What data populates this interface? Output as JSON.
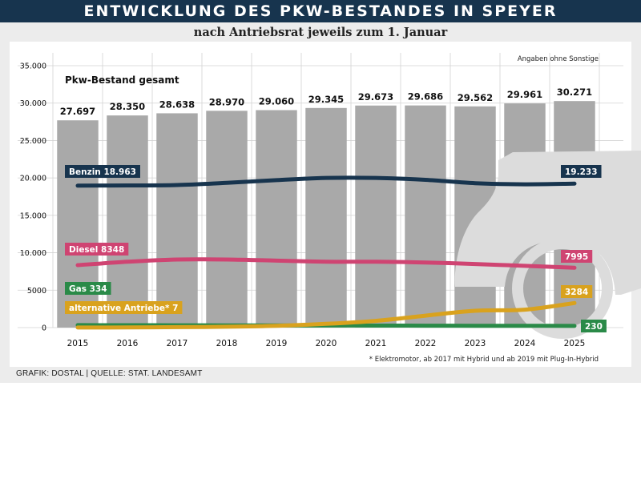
{
  "header": {
    "title": "ENTWICKLUNG DES PKW-BESTANDES IN SPEYER",
    "subtitle": "nach Antriebsrat jeweils zum 1. Januar"
  },
  "footer": {
    "credit": "GRAFIK: DOSTAL | QUELLE: STAT. LANDESAMT"
  },
  "chart_data": {
    "type": "bar",
    "title": "ENTWICKLUNG DES PKW-BESTANDES IN SPEYER",
    "subtitle": "nach Antriebsrat jeweils zum 1. Januar",
    "categories": [
      "2015",
      "2016",
      "2017",
      "2018",
      "2019",
      "2020",
      "2021",
      "2022",
      "2023",
      "2024",
      "2025"
    ],
    "ylim": [
      0,
      35000
    ],
    "yticks": [
      0,
      5000,
      10000,
      15000,
      20000,
      25000,
      30000,
      35000
    ],
    "ytick_labels": [
      "0",
      "5000",
      "10.000",
      "15.000",
      "20.000",
      "25.000",
      "30.000",
      "35.000"
    ],
    "grid": true,
    "note_top": "Angaben ohne Sonstige",
    "footnote": "* Elektromotor, ab 2017 mit Hybrid und ab 2019 mit Plug-In-Hybrid",
    "bars": {
      "name": "Pkw-Bestand gesamt",
      "color": "#a9a9a9",
      "values": [
        27697,
        28350,
        28638,
        28970,
        29060,
        29345,
        29673,
        29686,
        29562,
        29961,
        30271
      ],
      "labels": [
        "27.697",
        "28.350",
        "28.638",
        "28.970",
        "29.060",
        "29.345",
        "29.673",
        "29.686",
        "29.562",
        "29.961",
        "30.271"
      ]
    },
    "series": [
      {
        "name": "Benzin",
        "color": "#17344e",
        "values": [
          18963,
          19000,
          19050,
          19350,
          19700,
          20000,
          20000,
          19750,
          19300,
          19150,
          19233
        ],
        "start_label": "Benzin 18.963",
        "end_label": "19.233"
      },
      {
        "name": "Diesel",
        "color": "#cf4472",
        "values": [
          8348,
          8800,
          9100,
          9100,
          8950,
          8800,
          8800,
          8700,
          8500,
          8250,
          7995
        ],
        "start_label": "Diesel 8348",
        "end_label": "7995"
      },
      {
        "name": "Gas",
        "color": "#2a8a48",
        "values": [
          334,
          320,
          310,
          300,
          290,
          280,
          270,
          260,
          250,
          240,
          230
        ],
        "start_label": "Gas 334",
        "end_label": "230"
      },
      {
        "name": "alternative Antriebe*",
        "color": "#d9a21e",
        "values": [
          7,
          20,
          60,
          120,
          250,
          500,
          900,
          1600,
          2250,
          2400,
          3284
        ],
        "start_label": "alternative Antriebe* 7",
        "end_label": "3284"
      }
    ]
  }
}
